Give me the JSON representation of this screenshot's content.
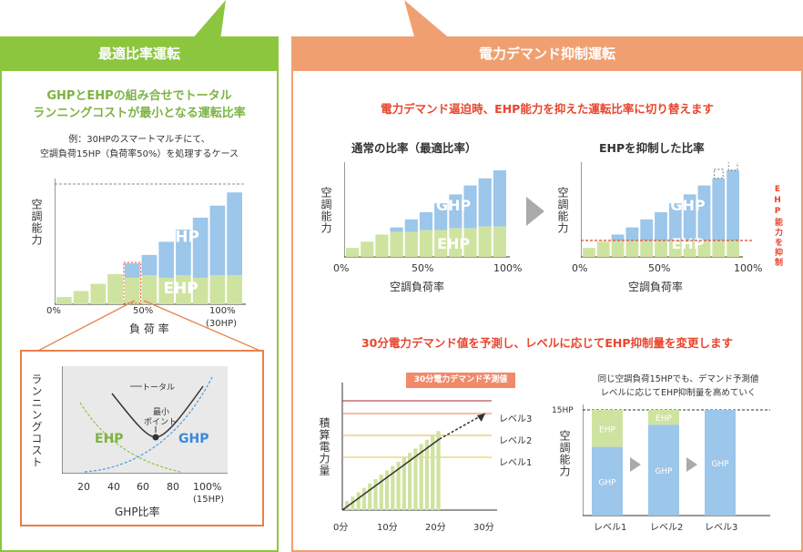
{
  "left": {
    "title": "最適比率運転",
    "headline1": "GHPとEHPの組み合せでトータル",
    "headline2": "ランニングコストが最小となる運転比率",
    "note1": "例：30HPのスマートマルチにて、",
    "note2": "空調負荷15HP（負荷率50%）を処理するケース",
    "y_label": "空調能力",
    "x_label": "負 荷 率",
    "x0": "0%",
    "x50": "50%",
    "x100": "100%",
    "x100_sub": "(30HP)",
    "ghp": "GHP",
    "ehp": "EHP",
    "bars_total": [
      0.06,
      0.11,
      0.17,
      0.25,
      0.34,
      0.41,
      0.52,
      0.62,
      0.72,
      0.82,
      0.93
    ],
    "bars_ehp": [
      0.06,
      0.11,
      0.17,
      0.25,
      0.22,
      0.24,
      0.22,
      0.24,
      0.22,
      0.24,
      0.24
    ]
  },
  "inset": {
    "y_label": "ランニングコスト",
    "x_label": "GHP比率",
    "ticks": [
      "20",
      "40",
      "60",
      "80",
      "100%"
    ],
    "x100_sub": "(15HP)",
    "total": "トータル",
    "min_point1": "最小",
    "min_point2": "ポイント",
    "ehp": "EHP",
    "ghp": "GHP"
  },
  "right": {
    "title": "電力デマンド抑制運転",
    "headline": "電力デマンド逼迫時、EHP能力を抑えた運転比率に切り替えます",
    "chart1_title": "通常の比率（最適比率）",
    "chart2_title": "EHPを抑制した比率",
    "y_label": "空調能力",
    "x_label": "空調負荷率",
    "x0": "0%",
    "x50": "50%",
    "x100": "100%",
    "ghp": "GHP",
    "ehp": "EHP",
    "side_note": "EHP能力を抑制",
    "headline2": "30分電力デマンド値を予測し、レベルに応じてEHP抑制量を変更します",
    "demand_tag": "30分電力デマンド予測値",
    "accum_label": "積算電力量",
    "levels": [
      "レベル3",
      "レベル2",
      "レベル1"
    ],
    "time_ticks": [
      "0分",
      "10分",
      "20分",
      "30分"
    ],
    "cmp_note1": "同じ空調負荷15HPでも、デマンド予測値",
    "cmp_note2": "レベルに応じてEHP抑制量を高めていく",
    "hp15": "15HP",
    "cmp_levels": [
      "レベル1",
      "レベル2",
      "レベル3"
    ],
    "cmp_ehp_frac": [
      0.35,
      0.14,
      0.0
    ]
  },
  "colors": {
    "green": "#8cc63f",
    "orange": "#f0a070",
    "ghp": "#9cc6ea",
    "ehp": "#cfe3a0",
    "red": "#e8452c"
  }
}
